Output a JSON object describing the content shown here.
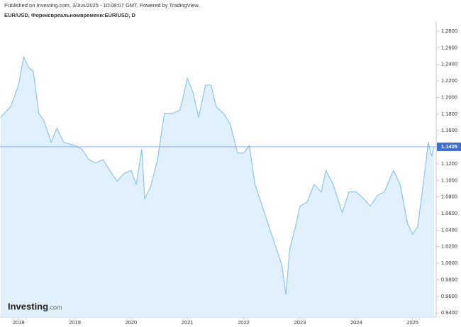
{
  "chart_data": {
    "type": "area",
    "published": "Published on Investing.com, 3/Jun/2025 - 10:08:07 GMT, Powered by TradingView.",
    "title": "EUR/USD, Форексвреальномвремени:EUR/USD, D",
    "logo_main": "Investing",
    "logo_suffix": ".com",
    "color": "#8ec4e8",
    "fill_color": "#e0f1fb",
    "x": [
      2017.68,
      2017.86,
      2018.0,
      2018.09,
      2018.18,
      2018.26,
      2018.36,
      2018.45,
      2018.58,
      2018.68,
      2018.8,
      2019.0,
      2019.12,
      2019.25,
      2019.37,
      2019.5,
      2019.62,
      2019.75,
      2019.87,
      2020.0,
      2020.09,
      2020.19,
      2020.24,
      2020.34,
      2020.47,
      2020.59,
      2020.75,
      2020.87,
      2021.0,
      2021.1,
      2021.2,
      2021.32,
      2021.42,
      2021.51,
      2021.64,
      2021.76,
      2021.89,
      2022.0,
      2022.1,
      2022.2,
      2022.33,
      2022.45,
      2022.58,
      2022.68,
      2022.75,
      2022.82,
      2022.92,
      2023.0,
      2023.13,
      2023.25,
      2023.38,
      2023.46,
      2023.59,
      2023.75,
      2023.87,
      2024.0,
      2024.13,
      2024.25,
      2024.38,
      2024.5,
      2024.66,
      2024.78,
      2024.91,
      2025.0,
      2025.09,
      2025.19,
      2025.28,
      2025.34,
      2025.38
    ],
    "values": [
      1.176,
      1.189,
      1.215,
      1.249,
      1.236,
      1.232,
      1.181,
      1.172,
      1.146,
      1.163,
      1.146,
      1.142,
      1.138,
      1.125,
      1.121,
      1.125,
      1.112,
      1.099,
      1.108,
      1.112,
      1.095,
      1.138,
      1.078,
      1.091,
      1.125,
      1.181,
      1.181,
      1.185,
      1.223,
      1.206,
      1.176,
      1.215,
      1.215,
      1.189,
      1.181,
      1.168,
      1.133,
      1.133,
      1.142,
      1.095,
      1.069,
      1.044,
      1.018,
      0.997,
      0.962,
      1.018,
      1.044,
      1.069,
      1.074,
      1.095,
      1.086,
      1.112,
      1.095,
      1.061,
      1.086,
      1.086,
      1.078,
      1.069,
      1.082,
      1.086,
      1.112,
      1.095,
      1.048,
      1.035,
      1.044,
      1.095,
      1.146,
      1.129,
      1.1405
    ],
    "xlim": [
      2017.67,
      2025.42
    ],
    "xticks": [
      2018,
      2019,
      2020,
      2021,
      2022,
      2023,
      2024,
      2025
    ],
    "ylim": [
      0.935,
      1.292
    ],
    "yticks": [
      {
        "value": 0.94,
        "label": "0.9400"
      },
      {
        "value": 0.96,
        "label": "0.9600"
      },
      {
        "value": 0.98,
        "label": "0.9800"
      },
      {
        "value": 1.0,
        "label": "1.0000"
      },
      {
        "value": 1.02,
        "label": "1.0200"
      },
      {
        "value": 1.04,
        "label": "1.0400"
      },
      {
        "value": 1.06,
        "label": "1.0600"
      },
      {
        "value": 1.08,
        "label": "1.0800"
      },
      {
        "value": 1.1,
        "label": "1.1000"
      },
      {
        "value": 1.12,
        "label": "1.1200"
      },
      {
        "value": 1.14,
        "label": "1.1400"
      },
      {
        "value": 1.16,
        "label": "1.1600"
      },
      {
        "value": 1.18,
        "label": "1.1800"
      },
      {
        "value": 1.2,
        "label": "1.2000"
      },
      {
        "value": 1.22,
        "label": "1.2200"
      },
      {
        "value": 1.24,
        "label": "1.2400"
      },
      {
        "value": 1.26,
        "label": "1.2600"
      },
      {
        "value": 1.28,
        "label": "1.2800"
      }
    ],
    "last_price": {
      "value": 1.1405,
      "label": "1.1405"
    },
    "last_price_color": "#3f6fd1",
    "grid": false
  }
}
